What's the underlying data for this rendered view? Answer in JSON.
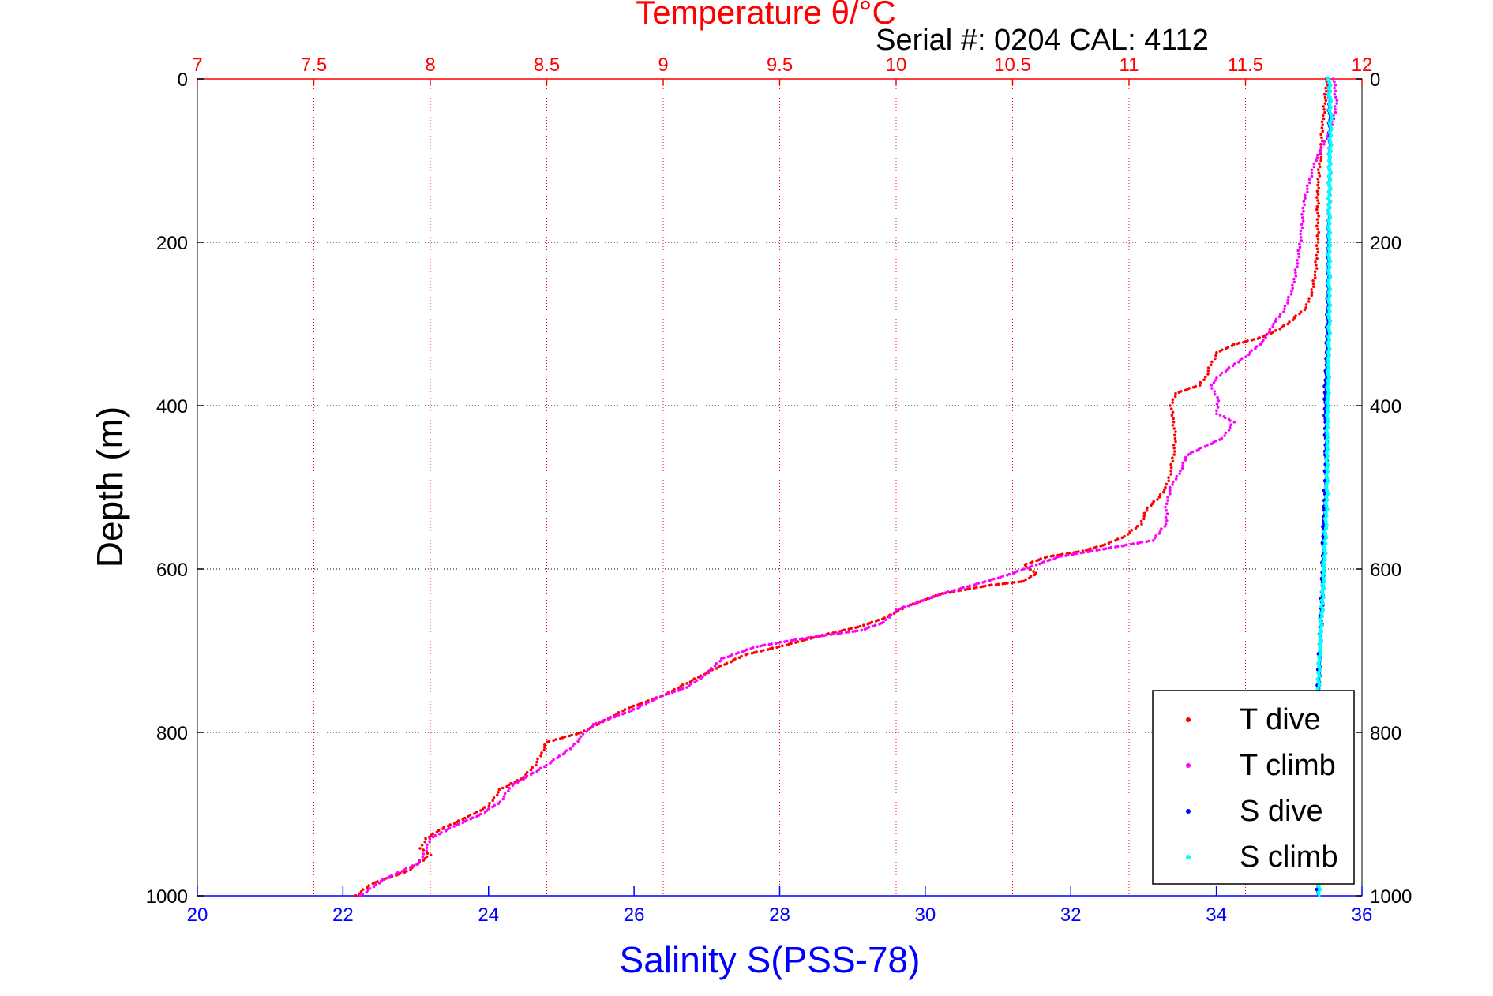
{
  "chart_data": {
    "type": "scatter",
    "title": "Temperature θ/°C",
    "subtitle": "Serial #: 0204  CAL: 4112",
    "xlabel": "Salinity S(PSS-78)",
    "ylabel": "Depth (m)",
    "x_bottom": {
      "lim": [
        20,
        36
      ],
      "ticks": [
        "20",
        "22",
        "24",
        "26",
        "28",
        "30",
        "32",
        "34",
        "36"
      ]
    },
    "x_top": {
      "lim": [
        7,
        12
      ],
      "ticks": [
        "7",
        "7.5",
        "8",
        "8.5",
        "9",
        "9.5",
        "10",
        "10.5",
        "11",
        "11.5",
        "12"
      ]
    },
    "y": {
      "lim": [
        0,
        1000
      ],
      "reversed": true,
      "ticks_left": [
        "0",
        "200",
        "400",
        "600",
        "800",
        "1000"
      ],
      "ticks_right": [
        "0",
        "200",
        "400",
        "600",
        "800",
        "1000"
      ]
    },
    "grid": true,
    "legend": {
      "placement": "bottom-right",
      "entries": [
        "T dive",
        "T climb",
        "S dive",
        "S climb"
      ]
    },
    "colors": {
      "t_dive": "#ff0000",
      "t_climb": "#ff00ff",
      "s_dive": "#0000ff",
      "s_climb": "#00ffff",
      "top_axis": "#ff0000",
      "bottom_axis": "#0000ff"
    },
    "series": [
      {
        "name": "T dive",
        "axis": "top",
        "points": [
          [
            11.85,
            0
          ],
          [
            11.84,
            30
          ],
          [
            11.83,
            60
          ],
          [
            11.82,
            100
          ],
          [
            11.81,
            130
          ],
          [
            11.81,
            160
          ],
          [
            11.81,
            200
          ],
          [
            11.8,
            240
          ],
          [
            11.78,
            265
          ],
          [
            11.76,
            280
          ],
          [
            11.72,
            290
          ],
          [
            11.68,
            300
          ],
          [
            11.62,
            310
          ],
          [
            11.55,
            318
          ],
          [
            11.45,
            325
          ],
          [
            11.38,
            335
          ],
          [
            11.35,
            350
          ],
          [
            11.33,
            365
          ],
          [
            11.3,
            375
          ],
          [
            11.2,
            385
          ],
          [
            11.18,
            400
          ],
          [
            11.19,
            420
          ],
          [
            11.2,
            440
          ],
          [
            11.19,
            460
          ],
          [
            11.18,
            480
          ],
          [
            11.16,
            500
          ],
          [
            11.12,
            515
          ],
          [
            11.08,
            525
          ],
          [
            11.05,
            545
          ],
          [
            10.98,
            560
          ],
          [
            10.9,
            570
          ],
          [
            10.8,
            578
          ],
          [
            10.65,
            585
          ],
          [
            10.55,
            595
          ],
          [
            10.6,
            605
          ],
          [
            10.55,
            615
          ],
          [
            10.4,
            620
          ],
          [
            10.2,
            630
          ],
          [
            10.05,
            645
          ],
          [
            9.95,
            660
          ],
          [
            9.85,
            670
          ],
          [
            9.7,
            680
          ],
          [
            9.5,
            695
          ],
          [
            9.35,
            705
          ],
          [
            9.3,
            712
          ],
          [
            9.2,
            725
          ],
          [
            9.1,
            740
          ],
          [
            9.0,
            755
          ],
          [
            8.85,
            770
          ],
          [
            8.75,
            785
          ],
          [
            8.65,
            800
          ],
          [
            8.5,
            812
          ],
          [
            8.48,
            825
          ],
          [
            8.45,
            840
          ],
          [
            8.4,
            855
          ],
          [
            8.3,
            870
          ],
          [
            8.25,
            890
          ],
          [
            8.15,
            905
          ],
          [
            8.05,
            918
          ],
          [
            7.98,
            930
          ],
          [
            7.96,
            942
          ],
          [
            8.0,
            950
          ],
          [
            7.9,
            970
          ],
          [
            7.75,
            985
          ],
          [
            7.68,
            1000
          ]
        ]
      },
      {
        "name": "T climb",
        "axis": "top",
        "points": [
          [
            11.88,
            0
          ],
          [
            11.89,
            30
          ],
          [
            11.87,
            60
          ],
          [
            11.8,
            100
          ],
          [
            11.75,
            150
          ],
          [
            11.74,
            190
          ],
          [
            11.72,
            230
          ],
          [
            11.7,
            260
          ],
          [
            11.66,
            285
          ],
          [
            11.62,
            300
          ],
          [
            11.58,
            320
          ],
          [
            11.5,
            340
          ],
          [
            11.4,
            360
          ],
          [
            11.35,
            375
          ],
          [
            11.38,
            390
          ],
          [
            11.38,
            410
          ],
          [
            11.45,
            420
          ],
          [
            11.4,
            440
          ],
          [
            11.25,
            460
          ],
          [
            11.22,
            480
          ],
          [
            11.18,
            500
          ],
          [
            11.16,
            520
          ],
          [
            11.16,
            545
          ],
          [
            11.1,
            565
          ],
          [
            10.9,
            575
          ],
          [
            10.7,
            585
          ],
          [
            10.6,
            595
          ],
          [
            10.45,
            610
          ],
          [
            10.2,
            630
          ],
          [
            10.0,
            650
          ],
          [
            9.95,
            665
          ],
          [
            9.85,
            675
          ],
          [
            9.6,
            685
          ],
          [
            9.4,
            695
          ],
          [
            9.25,
            710
          ],
          [
            9.18,
            730
          ],
          [
            9.1,
            745
          ],
          [
            9.0,
            755
          ],
          [
            8.85,
            775
          ],
          [
            8.7,
            790
          ],
          [
            8.65,
            805
          ],
          [
            8.6,
            820
          ],
          [
            8.5,
            840
          ],
          [
            8.35,
            865
          ],
          [
            8.3,
            885
          ],
          [
            8.22,
            900
          ],
          [
            8.1,
            915
          ],
          [
            8.0,
            930
          ],
          [
            7.98,
            945
          ],
          [
            7.95,
            960
          ],
          [
            7.8,
            980
          ],
          [
            7.7,
            1000
          ]
        ]
      },
      {
        "name": "S dive",
        "axis": "bottom",
        "points": [
          [
            35.55,
            0
          ],
          [
            35.56,
            50
          ],
          [
            35.56,
            100
          ],
          [
            35.55,
            150
          ],
          [
            35.54,
            200
          ],
          [
            35.54,
            250
          ],
          [
            35.53,
            300
          ],
          [
            35.52,
            350
          ],
          [
            35.5,
            380
          ],
          [
            35.5,
            420
          ],
          [
            35.51,
            460
          ],
          [
            35.5,
            500
          ],
          [
            35.48,
            540
          ],
          [
            35.47,
            580
          ],
          [
            35.46,
            620
          ],
          [
            35.44,
            660
          ],
          [
            35.42,
            700
          ],
          [
            35.4,
            750
          ],
          [
            35.4,
            800
          ],
          [
            35.4,
            850
          ],
          [
            35.4,
            900
          ],
          [
            35.39,
            950
          ],
          [
            35.4,
            1000
          ]
        ]
      },
      {
        "name": "S climb",
        "axis": "bottom",
        "points": [
          [
            35.55,
            0
          ],
          [
            35.57,
            50
          ],
          [
            35.56,
            100
          ],
          [
            35.55,
            150
          ],
          [
            35.55,
            200
          ],
          [
            35.55,
            250
          ],
          [
            35.55,
            300
          ],
          [
            35.54,
            350
          ],
          [
            35.53,
            400
          ],
          [
            35.52,
            450
          ],
          [
            35.52,
            500
          ],
          [
            35.5,
            550
          ],
          [
            35.48,
            600
          ],
          [
            35.45,
            650
          ],
          [
            35.42,
            700
          ],
          [
            35.4,
            750
          ],
          [
            35.4,
            800
          ],
          [
            35.39,
            850
          ],
          [
            35.4,
            900
          ],
          [
            35.4,
            950
          ],
          [
            35.41,
            1000
          ]
        ]
      }
    ]
  }
}
